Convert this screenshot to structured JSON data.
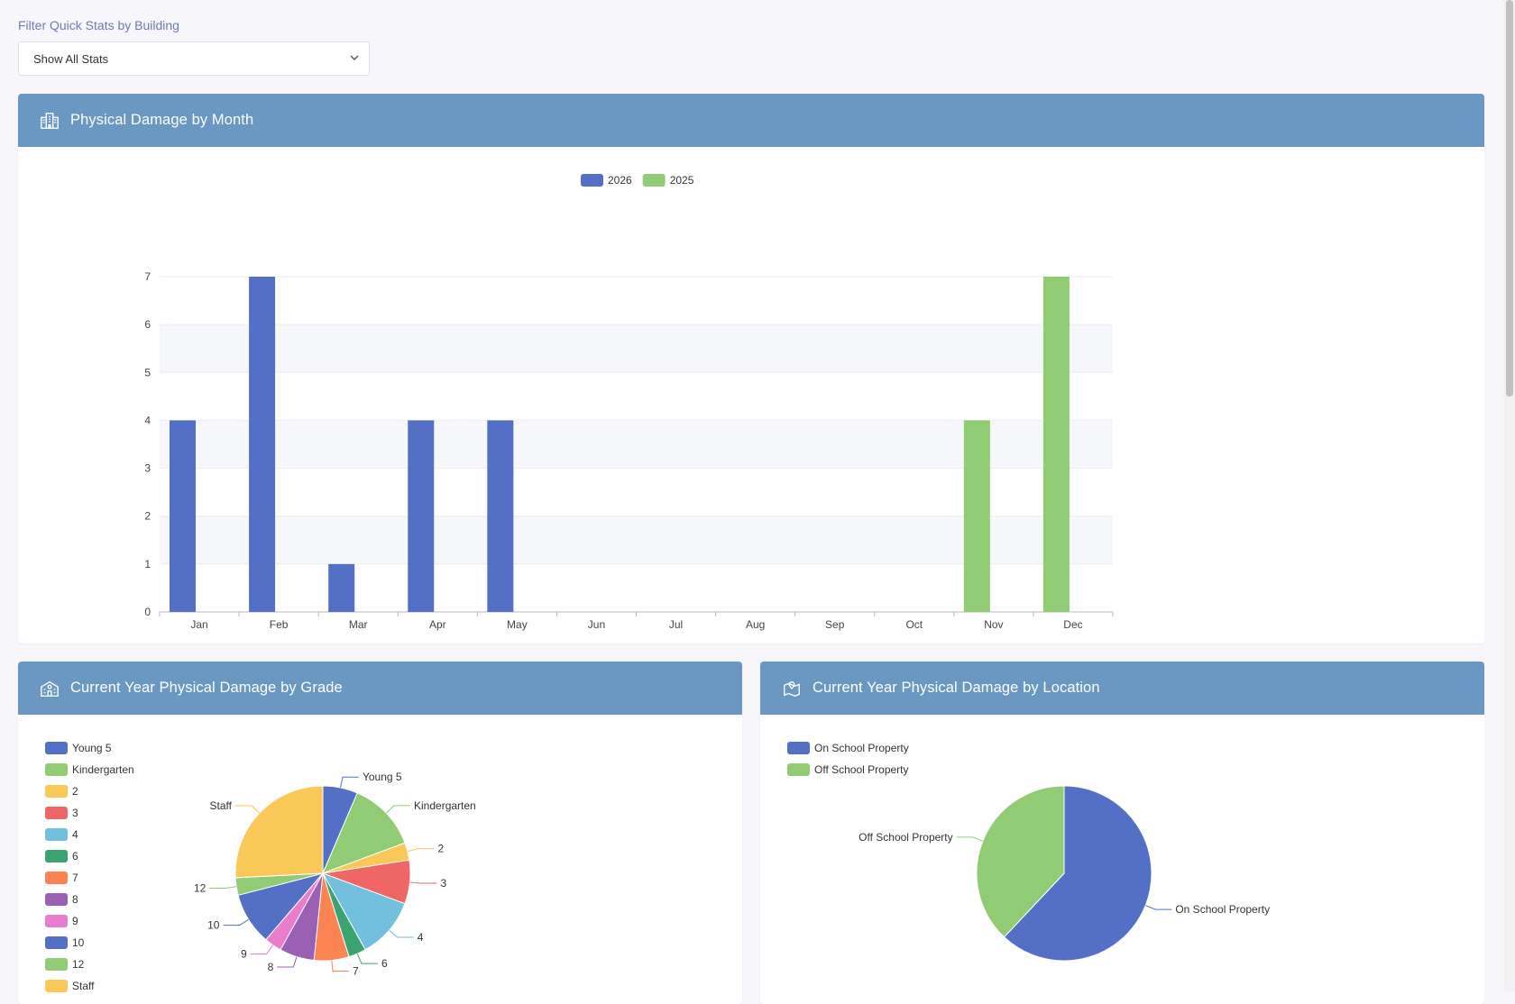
{
  "filter": {
    "label": "Filter Quick Stats by Building",
    "selected": "Show All Stats"
  },
  "cards": {
    "month": {
      "title": "Physical Damage by Month",
      "icon": "building-icon"
    },
    "grade": {
      "title": "Current Year Physical Damage by Grade",
      "icon": "school-icon"
    },
    "location": {
      "title": "Current Year Physical Damage by Location",
      "icon": "map-pin-icon"
    }
  },
  "colors": {
    "header": "#6b98c2",
    "blue": "#5470c6",
    "green": "#91cc75"
  },
  "chart_data": [
    {
      "type": "bar",
      "categories": [
        "Jan",
        "Feb",
        "Mar",
        "Apr",
        "May",
        "Jun",
        "Jul",
        "Aug",
        "Sep",
        "Oct",
        "Nov",
        "Dec"
      ],
      "series": [
        {
          "name": "2026",
          "color": "#5470c6",
          "values": [
            4,
            7,
            1,
            4,
            4,
            0,
            0,
            0,
            0,
            0,
            0,
            0
          ]
        },
        {
          "name": "2025",
          "color": "#91cc75",
          "values": [
            0,
            0,
            0,
            0,
            0,
            0,
            0,
            0,
            0,
            0,
            4,
            7
          ]
        }
      ],
      "ylim": [
        0,
        7
      ],
      "yticks": [
        "0",
        "1",
        "2",
        "3",
        "4",
        "5",
        "6",
        "7"
      ],
      "legend": "top-center",
      "grid": true
    },
    {
      "type": "pie",
      "legend": "left",
      "slices": [
        {
          "label": "Young 5",
          "value": 2,
          "color": "#5470c6"
        },
        {
          "label": "Kindergarten",
          "value": 4,
          "color": "#91cc75"
        },
        {
          "label": "2",
          "value": 1,
          "color": "#fac858"
        },
        {
          "label": "3",
          "value": 2.5,
          "color": "#ee6666"
        },
        {
          "label": "4",
          "value": 3.5,
          "color": "#73c0de"
        },
        {
          "label": "6",
          "value": 1,
          "color": "#3ba272"
        },
        {
          "label": "7",
          "value": 2,
          "color": "#fc8452"
        },
        {
          "label": "8",
          "value": 2,
          "color": "#9a60b4"
        },
        {
          "label": "9",
          "value": 1,
          "color": "#ea7ccc"
        },
        {
          "label": "10",
          "value": 3,
          "color": "#5470c6"
        },
        {
          "label": "12",
          "value": 1,
          "color": "#91cc75"
        },
        {
          "label": "Staff",
          "value": 8,
          "color": "#fac858"
        }
      ]
    },
    {
      "type": "pie",
      "legend": "top-left",
      "slices": [
        {
          "label": "On School Property",
          "value": 62,
          "color": "#5470c6"
        },
        {
          "label": "Off School Property",
          "value": 38,
          "color": "#91cc75"
        }
      ]
    }
  ]
}
